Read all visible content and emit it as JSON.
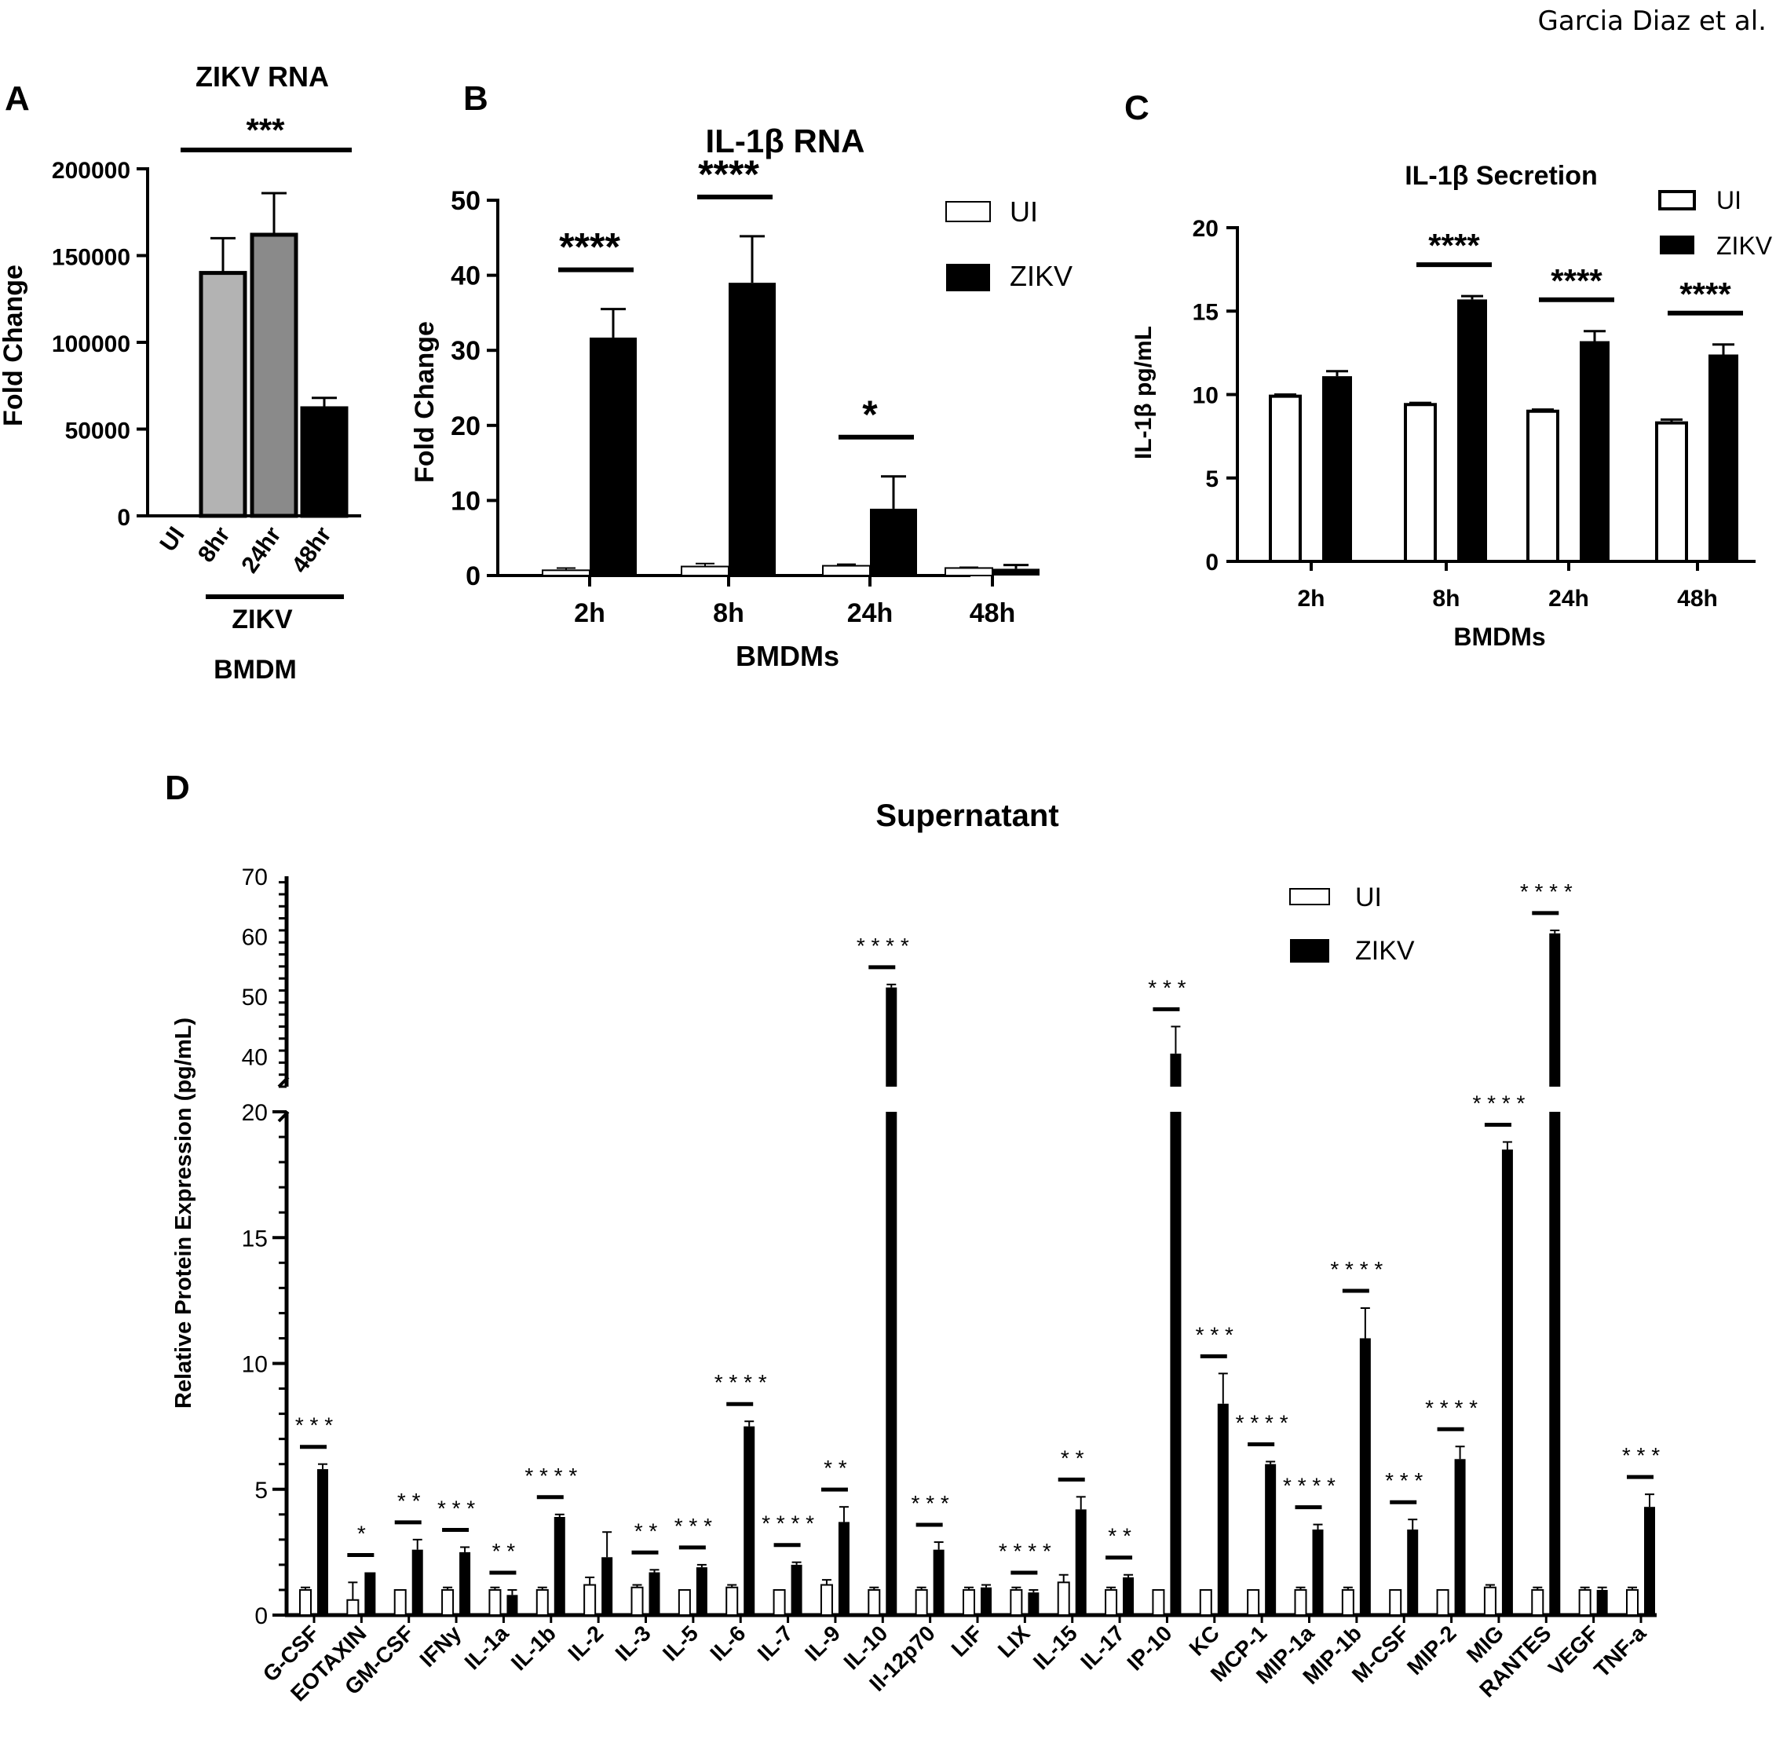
{
  "author": "Garcia Diaz et al.",
  "colors": {
    "black": "#000000",
    "white": "#ffffff",
    "light_gray": "#b3b3b3",
    "mid_gray": "#8a8a8a",
    "dark_gray": "#1a1a1a"
  },
  "chart_data": [
    {
      "panel": "A",
      "type": "bar",
      "title": "ZIKV RNA",
      "ylabel": "Fold Change",
      "xlabel_group": "ZIKV",
      "xlabel": "BMDM",
      "categories": [
        "UI",
        "8hr",
        "24hr",
        "48hr"
      ],
      "values": [
        0,
        140000,
        162000,
        62000
      ],
      "errors": [
        0,
        20000,
        24000,
        6000
      ],
      "bar_colors": [
        "#ffffff",
        "#b3b3b3",
        "#8a8a8a",
        "#000000"
      ],
      "ylim": [
        0,
        200000
      ],
      "yticks": [
        0,
        50000,
        100000,
        150000,
        200000
      ],
      "ytick_labels": [
        "0",
        "50000",
        "100000",
        "150000",
        "200000"
      ],
      "significance": "***"
    },
    {
      "panel": "B",
      "type": "bar",
      "title": "IL-1β RNA",
      "ylabel": "Fold Change",
      "xlabel": "BMDMs",
      "categories": [
        "2h",
        "8h",
        "24h",
        "48h"
      ],
      "series": [
        {
          "name": "UI",
          "values": [
            0.7,
            1.2,
            1.3,
            1.0
          ],
          "errors": [
            0.3,
            0.4,
            0.2,
            0.1
          ]
        },
        {
          "name": "ZIKV",
          "values": [
            31.7,
            39.0,
            8.9,
            0.9
          ],
          "errors": [
            3.8,
            6.2,
            4.3,
            0.5
          ]
        }
      ],
      "ylim": [
        0,
        50
      ],
      "yticks": [
        0,
        10,
        20,
        30,
        40,
        50
      ],
      "ytick_labels": [
        "0",
        "10",
        "20",
        "30",
        "40",
        "50"
      ],
      "significance": [
        "****",
        "****",
        "*",
        ""
      ]
    },
    {
      "panel": "C",
      "type": "bar",
      "title": "IL-1β Secretion",
      "ylabel": "IL-1β pg/mL",
      "xlabel": "BMDMs",
      "categories": [
        "2h",
        "8h",
        "24h",
        "48h"
      ],
      "series": [
        {
          "name": "UI",
          "values": [
            9.9,
            9.4,
            9.0,
            8.3
          ],
          "errors": [
            0.1,
            0.1,
            0.1,
            0.2
          ]
        },
        {
          "name": "ZIKV",
          "values": [
            11.1,
            15.7,
            13.2,
            12.4
          ],
          "errors": [
            0.3,
            0.2,
            0.6,
            0.6
          ]
        }
      ],
      "ylim": [
        0,
        20
      ],
      "yticks": [
        0,
        5,
        10,
        15,
        20
      ],
      "ytick_labels": [
        "0",
        "5",
        "10",
        "15",
        "20"
      ],
      "significance": [
        "",
        "****",
        "****",
        "****"
      ]
    },
    {
      "panel": "D",
      "type": "bar",
      "title": "Supernatant",
      "ylabel": "Relative Protein Expression (pg/mL)",
      "categories": [
        "G-CSF",
        "EOTAXIN",
        "GM-CSF",
        "IFNy",
        "IL-1a",
        "IL-1b",
        "IL-2",
        "IL-3",
        "IL-5",
        "IL-6",
        "IL-7",
        "IL-9",
        "IL-10",
        "Il-12p70",
        "LIF",
        "LIX",
        "IL-15",
        "IL-17",
        "IP-10",
        "KC",
        "MCP-1",
        "MIP-1a",
        "MIP-1b",
        "M-CSF",
        "MIP-2",
        "MIG",
        "RANTES",
        "VEGF",
        "TNF-a"
      ],
      "series": [
        {
          "name": "UI",
          "values": [
            1.0,
            0.6,
            1.0,
            1.0,
            1.0,
            1.0,
            1.2,
            1.1,
            1.0,
            1.1,
            1.0,
            1.2,
            1.0,
            1.0,
            1.0,
            1.0,
            1.3,
            1.0,
            1.0,
            1.0,
            1.0,
            1.0,
            1.0,
            1.0,
            1.0,
            1.1,
            1.0,
            1.0,
            1.0
          ],
          "errors": [
            0.1,
            0.7,
            0.0,
            0.1,
            0.1,
            0.1,
            0.3,
            0.1,
            0.0,
            0.1,
            0.0,
            0.2,
            0.1,
            0.1,
            0.1,
            0.1,
            0.3,
            0.1,
            0.0,
            0.0,
            0.0,
            0.1,
            0.1,
            0.0,
            0.0,
            0.1,
            0.1,
            0.1,
            0.1
          ]
        },
        {
          "name": "ZIKV",
          "values": [
            5.8,
            1.7,
            2.6,
            2.5,
            0.8,
            3.9,
            2.3,
            1.7,
            1.9,
            7.5,
            2.0,
            3.7,
            51.5,
            2.6,
            1.1,
            0.9,
            4.2,
            1.5,
            40.5,
            8.4,
            6.0,
            3.4,
            11.0,
            3.4,
            6.2,
            18.5,
            60.5,
            1.0,
            4.3
          ],
          "errors": [
            0.2,
            0.0,
            0.4,
            0.2,
            0.2,
            0.1,
            1.0,
            0.1,
            0.1,
            0.2,
            0.1,
            0.6,
            0.5,
            0.3,
            0.1,
            0.1,
            0.5,
            0.1,
            4.5,
            1.2,
            0.1,
            0.2,
            1.2,
            0.4,
            0.5,
            0.3,
            0.5,
            0.1,
            0.5
          ]
        }
      ],
      "significance": [
        "***",
        "*",
        "**",
        "***",
        "**",
        "****",
        "",
        "**",
        "***",
        "****",
        "****",
        "**",
        "****",
        "***",
        "",
        "****",
        "**",
        "**",
        "***",
        "***",
        "****",
        "****",
        "****",
        "***",
        "****",
        "****",
        "****",
        "",
        "***"
      ],
      "y_axis_break": {
        "lower_range": [
          0,
          20
        ],
        "upper_range": [
          35,
          70
        ]
      },
      "lower_yticks": [
        0,
        5,
        10,
        15,
        20
      ],
      "lower_ytick_labels": [
        "0",
        "5",
        "10",
        "15",
        "20"
      ],
      "upper_yticks": [
        40,
        50,
        60,
        70
      ],
      "upper_ytick_labels": [
        "40",
        "50",
        "60",
        "70"
      ]
    }
  ]
}
